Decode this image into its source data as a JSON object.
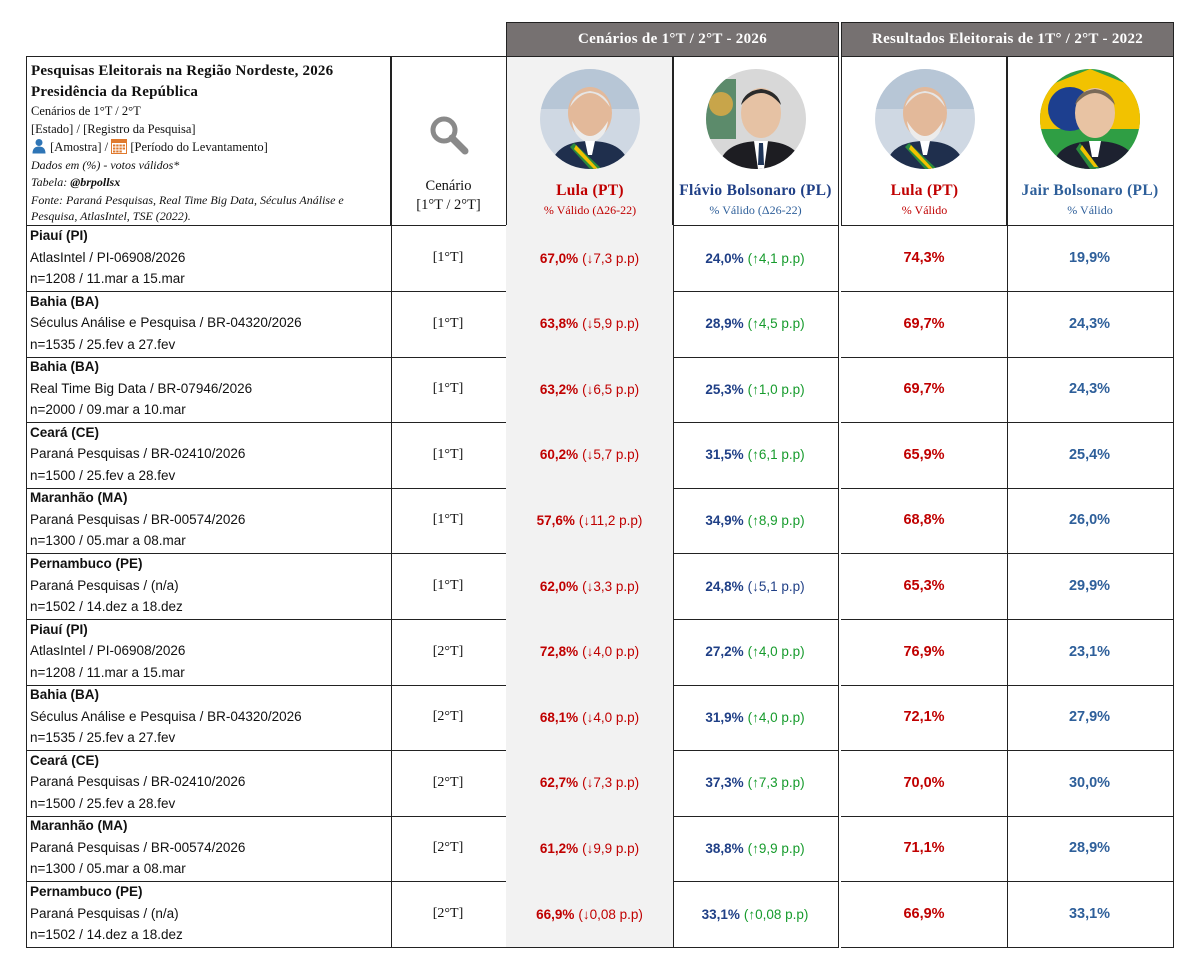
{
  "header": {
    "band_2026": "Cenários de 1°T / 2°T - 2026",
    "band_2022": "Resultados Eleitorais de 1T° / 2°T - 2022"
  },
  "title_box": {
    "line1": "Pesquisas Eleitorais na Região Nordeste, 2026",
    "line2": "Presidência da República",
    "line3": "Cenários de 1°T / 2°T",
    "line4": "[Estado] / [Registro da Pesquisa]",
    "line5a": "[Amostra] /",
    "line5b": "[Período do Levantamento]",
    "line6": "Dados em (%) - votos válidos*",
    "line7_label": "Tabela:",
    "line7_handle": "@brpollsx",
    "line8": "Fonte: Paraná Pesquisas, Real Time Big Data, Séculus Análise e Pesquisa, AtlasIntel, TSE (2022)."
  },
  "cenario_header": {
    "label": "Cenário",
    "sub": "[1°T / 2°T]"
  },
  "candidates": [
    {
      "name": "Lula (PT)",
      "sub": "% Válido (Δ26-22)"
    },
    {
      "name": "Flávio Bolsonaro (PL)",
      "sub": "% Válido (Δ26-22)"
    },
    {
      "name": "Lula (PT)",
      "sub": "% Válido"
    },
    {
      "name": "Jair Bolsonaro (PL)",
      "sub": "% Válido"
    }
  ],
  "colors": {
    "band": "#767171",
    "lula_red": "#c00000",
    "bolsonaro_blue": "#2e5f9a",
    "delta_green": "#169b2c",
    "shade": "#f2f2f2"
  },
  "rows": [
    {
      "state": "Piauí (PI)",
      "registry": "AtlasIntel / PI-06908/2026",
      "sample": "n=1208 / 11.mar a 15.mar",
      "cenario": "[1°T]",
      "lula": "67,0%",
      "lula_delta": "(↓7,3 p.p)",
      "flavio": "24,0%",
      "flavio_delta": "(↑4,1 p.p)",
      "lula22": "74,3%",
      "jair22": "19,9%",
      "flavio_delta_down": false
    },
    {
      "state": "Bahia (BA)",
      "registry": "Séculus Análise e Pesquisa / BR-04320/2026",
      "sample": "n=1535 / 25.fev a 27.fev",
      "cenario": "[1°T]",
      "lula": "63,8%",
      "lula_delta": "(↓5,9 p.p)",
      "flavio": "28,9%",
      "flavio_delta": "(↑4,5 p.p)",
      "lula22": "69,7%",
      "jair22": "24,3%",
      "flavio_delta_down": false
    },
    {
      "state": "Bahia (BA)",
      "registry": "Real Time Big Data / BR-07946/2026",
      "sample": "n=2000 / 09.mar a 10.mar",
      "cenario": "[1°T]",
      "lula": "63,2%",
      "lula_delta": "(↓6,5 p.p)",
      "flavio": "25,3%",
      "flavio_delta": "(↑1,0 p.p)",
      "lula22": "69,7%",
      "jair22": "24,3%",
      "flavio_delta_down": false
    },
    {
      "state": "Ceará (CE)",
      "registry": "Paraná Pesquisas / BR-02410/2026",
      "sample": "n=1500 / 25.fev a 28.fev",
      "cenario": "[1°T]",
      "lula": "60,2%",
      "lula_delta": "(↓5,7 p.p)",
      "flavio": "31,5%",
      "flavio_delta": "(↑6,1 p.p)",
      "lula22": "65,9%",
      "jair22": "25,4%",
      "flavio_delta_down": false
    },
    {
      "state": "Maranhão (MA)",
      "registry": "Paraná Pesquisas / BR-00574/2026",
      "sample": "n=1300 / 05.mar a 08.mar",
      "cenario": "[1°T]",
      "lula": "57,6%",
      "lula_delta": "(↓11,2 p.p)",
      "flavio": "34,9%",
      "flavio_delta": "(↑8,9 p.p)",
      "lula22": "68,8%",
      "jair22": "26,0%",
      "flavio_delta_down": false
    },
    {
      "state": "Pernambuco (PE)",
      "registry": "Paraná Pesquisas / (n/a)",
      "sample": "n=1502 / 14.dez a 18.dez",
      "cenario": "[1°T]",
      "lula": "62,0%",
      "lula_delta": "(↓3,3 p.p)",
      "flavio": "24,8%",
      "flavio_delta": "(↓5,1 p.p)",
      "lula22": "65,3%",
      "jair22": "29,9%",
      "flavio_delta_down": true
    },
    {
      "state": "Piauí (PI)",
      "registry": "AtlasIntel / PI-06908/2026",
      "sample": "n=1208 / 11.mar a 15.mar",
      "cenario": "[2°T]",
      "lula": "72,8%",
      "lula_delta": "(↓4,0 p.p)",
      "flavio": "27,2%",
      "flavio_delta": "(↑4,0 p.p)",
      "lula22": "76,9%",
      "jair22": "23,1%",
      "flavio_delta_down": false
    },
    {
      "state": "Bahia (BA)",
      "registry": "Séculus Análise e Pesquisa / BR-04320/2026",
      "sample": "n=1535 / 25.fev a 27.fev",
      "cenario": "[2°T]",
      "lula": "68,1%",
      "lula_delta": "(↓4,0 p.p)",
      "flavio": "31,9%",
      "flavio_delta": "(↑4,0 p.p)",
      "lula22": "72,1%",
      "jair22": "27,9%",
      "flavio_delta_down": false
    },
    {
      "state": "Ceará (CE)",
      "registry": "Paraná Pesquisas / BR-02410/2026",
      "sample": "n=1500 / 25.fev a 28.fev",
      "cenario": "[2°T]",
      "lula": "62,7%",
      "lula_delta": "(↓7,3 p.p)",
      "flavio": "37,3%",
      "flavio_delta": "(↑7,3 p.p)",
      "lula22": "70,0%",
      "jair22": "30,0%",
      "flavio_delta_down": false
    },
    {
      "state": "Maranhão (MA)",
      "registry": "Paraná Pesquisas / BR-00574/2026",
      "sample": "n=1300 / 05.mar a 08.mar",
      "cenario": "[2°T]",
      "lula": "61,2%",
      "lula_delta": "(↓9,9 p.p)",
      "flavio": "38,8%",
      "flavio_delta": "(↑9,9 p.p)",
      "lula22": "71,1%",
      "jair22": "28,9%",
      "flavio_delta_down": false
    },
    {
      "state": "Pernambuco (PE)",
      "registry": "Paraná Pesquisas / (n/a)",
      "sample": "n=1502 / 14.dez a 18.dez",
      "cenario": "[2°T]",
      "lula": "66,9%",
      "lula_delta": "(↓0,08 p.p)",
      "flavio": "33,1%",
      "flavio_delta": "(↑0,08 p.p)",
      "lula22": "66,9%",
      "jair22": "33,1%",
      "flavio_delta_down": false
    }
  ]
}
